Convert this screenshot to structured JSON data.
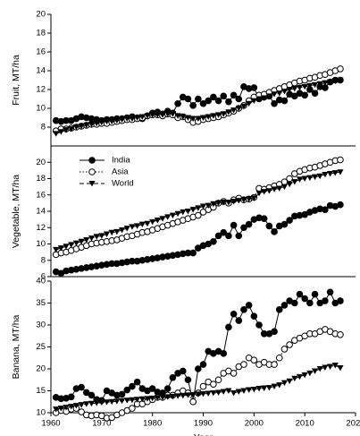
{
  "chart_data": [
    {
      "type": "line",
      "ylabel": "Fruit, MT/ha",
      "xlim": [
        1960,
        2020
      ],
      "ylim": [
        6,
        20
      ],
      "yticks": [
        8,
        10,
        12,
        14,
        16,
        18,
        20
      ],
      "x": [
        1961,
        1962,
        1963,
        1964,
        1965,
        1966,
        1967,
        1968,
        1969,
        1970,
        1971,
        1972,
        1973,
        1974,
        1975,
        1976,
        1977,
        1978,
        1979,
        1980,
        1981,
        1982,
        1983,
        1984,
        1985,
        1986,
        1987,
        1988,
        1989,
        1990,
        1991,
        1992,
        1993,
        1994,
        1995,
        1996,
        1997,
        1998,
        1999,
        2000,
        2001,
        2002,
        2003,
        2004,
        2005,
        2006,
        2007,
        2008,
        2009,
        2010,
        2011,
        2012,
        2013,
        2014,
        2015,
        2016,
        2017
      ],
      "series": [
        {
          "color": "#000000",
          "marker": "filled-circle",
          "linestyle": "solid",
          "values": [
            8.7,
            8.6,
            8.7,
            8.7,
            8.9,
            9.1,
            9.0,
            8.9,
            8.8,
            8.7,
            8.8,
            8.8,
            8.9,
            8.9,
            9.0,
            9.1,
            9.0,
            8.9,
            9.2,
            9.5,
            9.6,
            9.4,
            9.7,
            9.5,
            10.5,
            11.2,
            11.0,
            10.3,
            11.0,
            10.5,
            10.8,
            11.2,
            10.8,
            11.3,
            10.7,
            11.4,
            11.0,
            12.3,
            12.1,
            12.2,
            11.0,
            11.2,
            11.3,
            10.5,
            10.9,
            10.8,
            11.5,
            11.3,
            11.6,
            11.4,
            12.0,
            11.6,
            12.3,
            12.2,
            12.8,
            13.0,
            13.0
          ]
        },
        {
          "color": "#000000",
          "marker": "open-circle",
          "linestyle": "dotted",
          "values": [
            7.6,
            7.8,
            7.8,
            7.9,
            8.0,
            8.1,
            8.2,
            8.3,
            8.3,
            8.4,
            8.4,
            8.5,
            8.6,
            8.7,
            8.8,
            8.8,
            8.9,
            9.0,
            9.2,
            9.3,
            9.3,
            9.2,
            9.4,
            9.3,
            9.0,
            9.1,
            8.8,
            8.5,
            8.6,
            8.8,
            8.9,
            9.0,
            9.1,
            9.3,
            9.5,
            9.7,
            10.0,
            10.3,
            10.8,
            11.2,
            11.4,
            11.5,
            11.7,
            11.9,
            12.1,
            12.3,
            12.5,
            12.7,
            12.9,
            13.0,
            13.2,
            13.3,
            13.5,
            13.6,
            13.8,
            14.0,
            14.2
          ]
        },
        {
          "color": "#000000",
          "marker": "filled-triangle-down",
          "linestyle": "dashed",
          "values": [
            7.3,
            7.5,
            7.7,
            7.8,
            8.0,
            8.1,
            8.2,
            8.3,
            8.4,
            8.5,
            8.6,
            8.6,
            8.7,
            8.8,
            8.9,
            8.9,
            9.0,
            9.1,
            9.2,
            9.3,
            9.3,
            9.3,
            9.4,
            9.4,
            9.2,
            9.1,
            9.0,
            8.9,
            8.9,
            9.0,
            9.1,
            9.2,
            9.3,
            9.4,
            9.6,
            9.8,
            10.0,
            10.2,
            10.5,
            10.8,
            11.0,
            11.1,
            11.3,
            11.5,
            11.6,
            11.8,
            12.0,
            12.1,
            12.2,
            12.3,
            12.4,
            12.5,
            12.6,
            12.7,
            12.8,
            12.9,
            13.0
          ]
        }
      ]
    },
    {
      "type": "line",
      "ylabel": "Vegetable, MT/ha",
      "xlim": [
        1960,
        2020
      ],
      "ylim": [
        6,
        22
      ],
      "yticks": [
        6,
        8,
        10,
        12,
        14,
        16,
        18,
        20
      ],
      "legend": "upper left",
      "x": [
        1961,
        1962,
        1963,
        1964,
        1965,
        1966,
        1967,
        1968,
        1969,
        1970,
        1971,
        1972,
        1973,
        1974,
        1975,
        1976,
        1977,
        1978,
        1979,
        1980,
        1981,
        1982,
        1983,
        1984,
        1985,
        1986,
        1987,
        1988,
        1989,
        1990,
        1991,
        1992,
        1993,
        1994,
        1995,
        1996,
        1997,
        1998,
        1999,
        2000,
        2001,
        2002,
        2003,
        2004,
        2005,
        2006,
        2007,
        2008,
        2009,
        2010,
        2011,
        2012,
        2013,
        2014,
        2015,
        2016,
        2017
      ],
      "series": [
        {
          "name": "India",
          "color": "#000000",
          "marker": "filled-circle",
          "linestyle": "solid",
          "values": [
            6.6,
            6.4,
            6.7,
            6.8,
            6.9,
            7.0,
            7.1,
            7.2,
            7.3,
            7.4,
            7.5,
            7.6,
            7.6,
            7.7,
            7.8,
            7.9,
            7.9,
            8.0,
            8.1,
            8.2,
            8.3,
            8.4,
            8.5,
            8.6,
            8.7,
            8.8,
            8.9,
            8.9,
            9.5,
            9.8,
            10.0,
            10.3,
            11.0,
            11.4,
            11.0,
            12.3,
            11.0,
            12.0,
            12.4,
            13.0,
            13.2,
            13.1,
            12.2,
            11.5,
            12.2,
            12.4,
            12.9,
            13.4,
            13.5,
            13.6,
            13.9,
            14.1,
            14.3,
            14.2,
            14.7,
            14.6,
            14.8
          ]
        },
        {
          "name": "Asia",
          "color": "#000000",
          "marker": "open-circle",
          "linestyle": "dotted",
          "values": [
            8.7,
            8.9,
            9.0,
            9.2,
            9.4,
            9.6,
            9.8,
            10.0,
            10.1,
            10.2,
            10.3,
            10.4,
            10.5,
            10.7,
            10.9,
            11.0,
            11.2,
            11.4,
            11.5,
            11.7,
            11.9,
            12.1,
            12.3,
            12.5,
            12.7,
            12.9,
            13.1,
            13.3,
            13.5,
            13.9,
            14.2,
            14.5,
            15.0,
            15.2,
            15.0,
            15.4,
            15.6,
            15.4,
            15.5,
            15.7,
            16.8,
            16.7,
            16.9,
            17.1,
            17.3,
            17.6,
            18.0,
            18.6,
            18.9,
            19.1,
            19.3,
            19.4,
            19.6,
            19.8,
            20.0,
            20.2,
            20.3
          ]
        },
        {
          "name": "World",
          "color": "#000000",
          "marker": "filled-triangle-down",
          "linestyle": "dashed",
          "values": [
            9.3,
            9.5,
            9.7,
            9.9,
            10.1,
            10.3,
            10.5,
            10.7,
            10.9,
            11.0,
            11.2,
            11.4,
            11.5,
            11.7,
            11.9,
            12.1,
            12.2,
            12.4,
            12.5,
            12.7,
            12.9,
            13.1,
            13.3,
            13.5,
            13.7,
            13.9,
            14.0,
            14.2,
            14.4,
            14.6,
            14.7,
            14.9,
            15.0,
            15.1,
            15.1,
            15.2,
            15.3,
            15.4,
            15.5,
            15.6,
            16.2,
            16.4,
            16.5,
            16.7,
            16.8,
            17.0,
            17.3,
            17.6,
            17.9,
            18.0,
            18.1,
            18.2,
            18.3,
            18.5,
            18.6,
            18.7,
            18.8
          ]
        }
      ]
    },
    {
      "type": "line",
      "ylabel": "Banana, MT/ha",
      "xlabel": "Year",
      "xlim": [
        1960,
        2020
      ],
      "xticks": [
        1960,
        1970,
        1980,
        1990,
        2000,
        2010,
        2020
      ],
      "ylim": [
        10,
        40
      ],
      "yticks": [
        10,
        15,
        20,
        25,
        30,
        35,
        40
      ],
      "x": [
        1961,
        1962,
        1963,
        1964,
        1965,
        1966,
        1967,
        1968,
        1969,
        1970,
        1971,
        1972,
        1973,
        1974,
        1975,
        1976,
        1977,
        1978,
        1979,
        1980,
        1981,
        1982,
        1983,
        1984,
        1985,
        1986,
        1987,
        1988,
        1989,
        1990,
        1991,
        1992,
        1993,
        1994,
        1995,
        1996,
        1997,
        1998,
        1999,
        2000,
        2001,
        2002,
        2003,
        2004,
        2005,
        2006,
        2007,
        2008,
        2009,
        2010,
        2011,
        2012,
        2013,
        2014,
        2015,
        2016,
        2017
      ],
      "series": [
        {
          "color": "#000000",
          "marker": "filled-circle",
          "linestyle": "solid",
          "values": [
            13.5,
            13.2,
            13.3,
            13.6,
            15.5,
            15.8,
            14.6,
            14.0,
            13.0,
            12.8,
            15.0,
            14.5,
            14.0,
            14.2,
            15.2,
            16.0,
            17.0,
            15.5,
            15.0,
            15.5,
            14.7,
            14.5,
            15.5,
            18.0,
            19.0,
            19.5,
            17.5,
            12.5,
            20.0,
            21.0,
            24.0,
            23.5,
            24.0,
            23.5,
            29.5,
            32.5,
            31.0,
            33.5,
            34.5,
            32.0,
            30.0,
            28.0,
            28.0,
            28.5,
            33.5,
            34.5,
            35.5,
            35.0,
            37.0,
            36.0,
            35.0,
            37.0,
            35.0,
            35.5,
            37.5,
            35.0,
            35.5
          ]
        },
        {
          "color": "#000000",
          "marker": "open-circle",
          "linestyle": "dotted",
          "values": [
            10.0,
            10.5,
            10.3,
            10.8,
            11.0,
            10.2,
            9.5,
            9.3,
            9.5,
            9.3,
            8.8,
            8.9,
            9.5,
            10.0,
            10.5,
            11.0,
            12.0,
            12.0,
            12.5,
            13.0,
            13.5,
            13.5,
            14.0,
            14.0,
            14.5,
            15.0,
            14.5,
            12.5,
            14.5,
            16.0,
            17.0,
            16.5,
            17.5,
            19.0,
            19.5,
            19.0,
            20.5,
            21.0,
            22.5,
            22.0,
            21.0,
            21.5,
            21.0,
            21.0,
            22.5,
            24.5,
            25.5,
            26.5,
            27.0,
            27.5,
            28.0,
            28.0,
            28.5,
            29.0,
            28.5,
            28.0,
            27.8
          ]
        },
        {
          "color": "#000000",
          "marker": "filled-triangle-down",
          "linestyle": "dashed",
          "values": [
            10.8,
            11.0,
            11.2,
            11.4,
            11.6,
            11.8,
            12.0,
            12.1,
            12.2,
            12.3,
            12.4,
            12.5,
            12.6,
            12.7,
            12.8,
            12.9,
            13.0,
            13.1,
            13.2,
            13.3,
            13.4,
            13.5,
            13.6,
            13.7,
            13.8,
            13.9,
            14.0,
            14.1,
            14.2,
            14.3,
            14.4,
            14.5,
            14.6,
            14.8,
            15.0,
            14.5,
            14.8,
            15.0,
            15.2,
            15.3,
            15.5,
            15.6,
            15.7,
            16.0,
            16.3,
            16.8,
            17.2,
            17.8,
            18.2,
            18.6,
            19.0,
            19.5,
            20.0,
            20.3,
            20.5,
            20.8,
            20.2
          ]
        }
      ]
    }
  ]
}
